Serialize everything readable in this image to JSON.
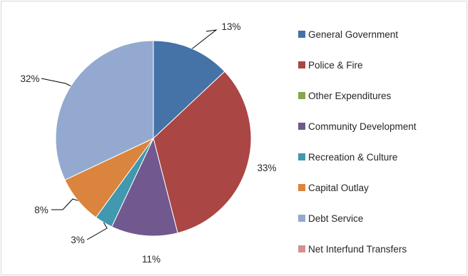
{
  "chart_data": {
    "type": "pie",
    "title": "",
    "legend_position": "right",
    "slices": [
      {
        "label": "General Government",
        "value": 13,
        "value_label": "13%",
        "color": "#4572A7"
      },
      {
        "label": "Police & Fire",
        "value": 33,
        "value_label": "33%",
        "color": "#AA4643"
      },
      {
        "label": "Other Expenditures",
        "value": 0,
        "value_label": "",
        "color": "#89A54E"
      },
      {
        "label": "Community Development",
        "value": 11,
        "value_label": "11%",
        "color": "#71588F"
      },
      {
        "label": "Recreation & Culture",
        "value": 3,
        "value_label": "3%",
        "color": "#4198AF"
      },
      {
        "label": "Capital Outlay",
        "value": 8,
        "value_label": "8%",
        "color": "#DB843D"
      },
      {
        "label": "Debt Service",
        "value": 32,
        "value_label": "32%",
        "color": "#93A9CF"
      },
      {
        "label": "Net Interfund Transfers",
        "value": 0,
        "value_label": "",
        "color": "#D19392"
      }
    ]
  }
}
